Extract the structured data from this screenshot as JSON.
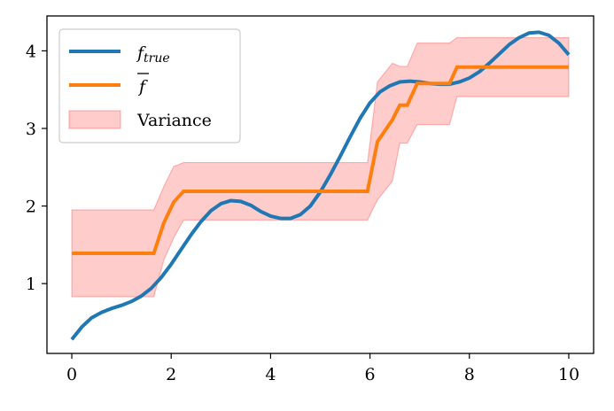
{
  "chart_data": {
    "type": "line",
    "xlim": [
      -0.5,
      10.5
    ],
    "ylim": [
      0.1,
      4.45
    ],
    "x_ticks": [
      0,
      2,
      4,
      6,
      8,
      10
    ],
    "y_ticks": [
      1,
      2,
      3,
      4
    ],
    "x_tick_labels": [
      "0",
      "2",
      "4",
      "6",
      "8",
      "10"
    ],
    "y_tick_labels": [
      "1",
      "2",
      "3",
      "4"
    ],
    "legend_position": "top-left",
    "grid": false,
    "series": [
      {
        "name": "f_true",
        "color": "#1f77b4",
        "x": [
          0,
          0.2,
          0.4,
          0.6,
          0.8,
          1.0,
          1.2,
          1.4,
          1.6,
          1.8,
          2.0,
          2.2,
          2.4,
          2.6,
          2.8,
          3.0,
          3.2,
          3.4,
          3.6,
          3.8,
          4.0,
          4.2,
          4.4,
          4.6,
          4.8,
          5.0,
          5.2,
          5.4,
          5.6,
          5.8,
          6.0,
          6.2,
          6.4,
          6.6,
          6.8,
          7.0,
          7.2,
          7.4,
          7.6,
          7.8,
          8.0,
          8.2,
          8.4,
          8.6,
          8.8,
          9.0,
          9.2,
          9.4,
          9.6,
          9.8,
          10.0
        ],
        "y": [
          0.28,
          0.44,
          0.56,
          0.63,
          0.68,
          0.72,
          0.77,
          0.84,
          0.94,
          1.08,
          1.25,
          1.44,
          1.63,
          1.8,
          1.94,
          2.03,
          2.07,
          2.06,
          2.01,
          1.93,
          1.87,
          1.84,
          1.84,
          1.89,
          2.0,
          2.18,
          2.4,
          2.64,
          2.89,
          3.13,
          3.33,
          3.47,
          3.55,
          3.6,
          3.61,
          3.6,
          3.58,
          3.57,
          3.57,
          3.6,
          3.65,
          3.73,
          3.84,
          3.96,
          4.08,
          4.17,
          4.23,
          4.24,
          4.2,
          4.1,
          3.95
        ]
      },
      {
        "name": "f_bar",
        "color": "#ff7f0e",
        "x": [
          0,
          1.65,
          1.85,
          2.05,
          2.25,
          5.95,
          6.15,
          6.45,
          6.6,
          6.75,
          6.95,
          7.6,
          7.75,
          10.0
        ],
        "y": [
          1.39,
          1.39,
          1.78,
          2.05,
          2.19,
          2.19,
          2.83,
          3.11,
          3.3,
          3.3,
          3.58,
          3.58,
          3.79,
          3.79
        ]
      }
    ],
    "variance_band": {
      "name": "Variance",
      "color": "#ff0000",
      "x": [
        0,
        1.65,
        1.85,
        2.05,
        2.25,
        5.95,
        6.15,
        6.45,
        6.6,
        6.75,
        6.95,
        7.6,
        7.75,
        10.0
      ],
      "upper": [
        1.95,
        1.95,
        2.25,
        2.51,
        2.56,
        2.56,
        3.6,
        3.84,
        3.8,
        3.8,
        4.1,
        4.1,
        4.17,
        4.17
      ],
      "lower": [
        0.83,
        0.83,
        1.3,
        1.59,
        1.82,
        1.82,
        2.08,
        2.32,
        2.81,
        2.81,
        3.05,
        3.05,
        3.41,
        3.41
      ]
    }
  }
}
